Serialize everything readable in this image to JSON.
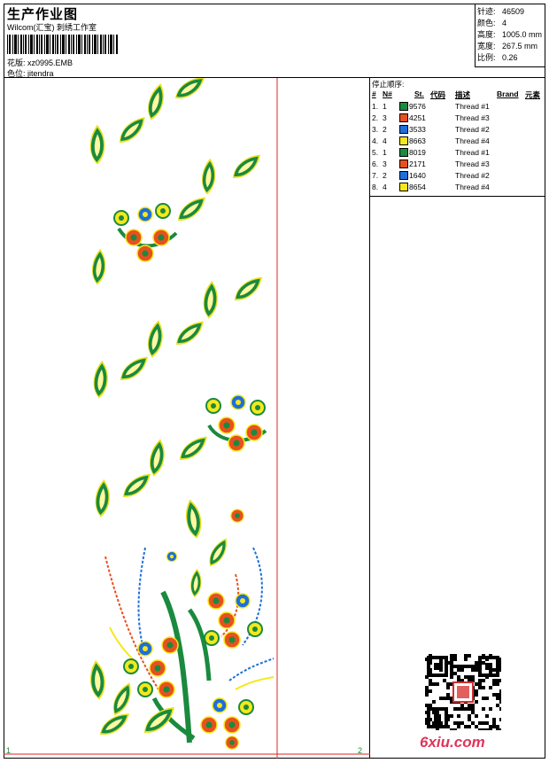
{
  "header": {
    "title": "生产作业图",
    "company": "Wilcom(汇宝) 刺绣工作室",
    "design_label": "花版:",
    "design_value": "xz0995.EMB",
    "color_label": "色位:",
    "color_value": "jitendra"
  },
  "stats": [
    {
      "label": "针迹:",
      "value": "46509"
    },
    {
      "label": "颜色:",
      "value": "4"
    },
    {
      "label": "高度:",
      "value": "1005.0 mm"
    },
    {
      "label": "宽度:",
      "value": "267.5 mm"
    },
    {
      "label": "比例:",
      "value": "0.26"
    }
  ],
  "stop_sequence": {
    "title": "停止顺序:",
    "columns": [
      "#",
      "N#",
      "St.",
      "代码",
      "描述",
      "Brand",
      "元素"
    ],
    "rows": [
      {
        "num": "1.",
        "needle": "1",
        "color": "#1a8a3e",
        "code": "9576",
        "desc": "Thread #1"
      },
      {
        "num": "2.",
        "needle": "3",
        "color": "#e8501e",
        "code": "4251",
        "desc": "Thread #3"
      },
      {
        "num": "3.",
        "needle": "2",
        "color": "#1e6fd9",
        "code": "3533",
        "desc": "Thread #2"
      },
      {
        "num": "4.",
        "needle": "4",
        "color": "#f4e81c",
        "code": "8663",
        "desc": "Thread #4"
      },
      {
        "num": "5.",
        "needle": "1",
        "color": "#1a8a3e",
        "code": "8019",
        "desc": "Thread #1"
      },
      {
        "num": "6.",
        "needle": "3",
        "color": "#e8501e",
        "code": "2171",
        "desc": "Thread #3"
      },
      {
        "num": "7.",
        "needle": "2",
        "color": "#1e6fd9",
        "code": "1640",
        "desc": "Thread #2"
      },
      {
        "num": "8.",
        "needle": "4",
        "color": "#f4e81c",
        "code": "8654",
        "desc": "Thread #4"
      }
    ]
  },
  "canvas": {
    "corner_label_left": "1",
    "corner_label_right": "2"
  },
  "watermark": "6xiu.com"
}
